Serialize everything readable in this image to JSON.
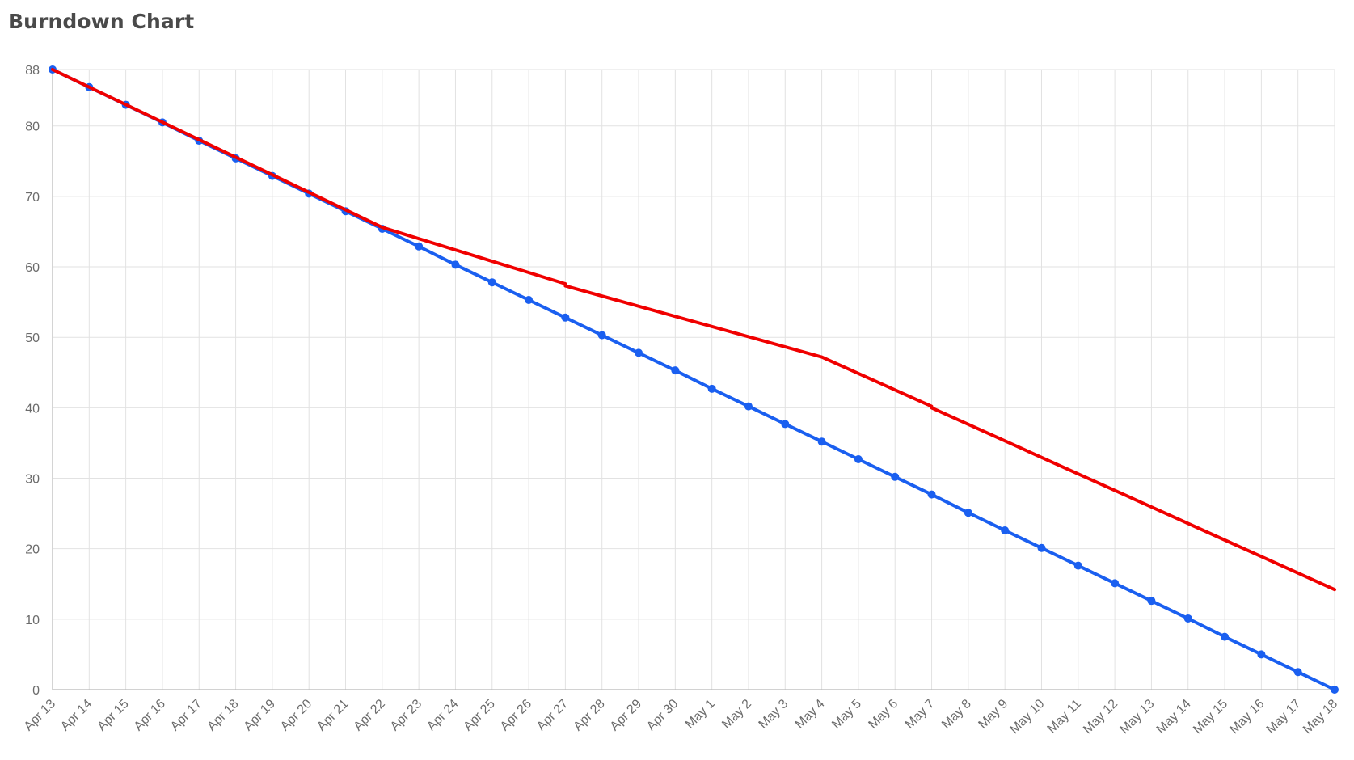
{
  "title": "Burndown Chart",
  "chart_data": {
    "type": "line",
    "title": "Burndown Chart",
    "xlabel": "",
    "ylabel": "",
    "ylim": [
      0,
      88
    ],
    "y_ticks": [
      0,
      10,
      20,
      30,
      40,
      50,
      60,
      70,
      80,
      88
    ],
    "grid": true,
    "legend": "none",
    "x": [
      "Apr 13",
      "Apr 14",
      "Apr 15",
      "Apr 16",
      "Apr 17",
      "Apr 18",
      "Apr 19",
      "Apr 20",
      "Apr 21",
      "Apr 22",
      "Apr 23",
      "Apr 24",
      "Apr 25",
      "Apr 26",
      "Apr 27",
      "Apr 28",
      "Apr 29",
      "Apr 30",
      "May 1",
      "May 2",
      "May 3",
      "May 4",
      "May 5",
      "May 6",
      "May 7",
      "May 8",
      "May 9",
      "May 10",
      "May 11",
      "May 12",
      "May 13",
      "May 14",
      "May 15",
      "May 16",
      "May 17",
      "May 18"
    ],
    "series": [
      {
        "color": "#1a5ff0",
        "markers": true,
        "values": [
          88,
          85.5,
          83,
          80.5,
          77.9,
          75.4,
          72.9,
          70.4,
          67.9,
          65.4,
          62.9,
          60.3,
          57.8,
          55.3,
          52.8,
          50.3,
          47.8,
          45.3,
          42.7,
          40.2,
          37.7,
          35.2,
          32.7,
          30.2,
          27.7,
          25.1,
          22.6,
          20.1,
          17.6,
          15.1,
          12.6,
          10.1,
          7.5,
          5,
          2.5,
          0
        ]
      },
      {
        "color": "#f00000",
        "markers": false,
        "points": [
          [
            "Apr 13",
            88
          ],
          [
            "Apr 22",
            65.6
          ],
          [
            "Apr 27",
            57.6
          ],
          [
            "Apr 27",
            57.3
          ],
          [
            "May 4",
            47.2
          ],
          [
            "May 7",
            40.2
          ],
          [
            "May 7",
            40
          ],
          [
            "May 18",
            14.2
          ]
        ]
      }
    ]
  }
}
